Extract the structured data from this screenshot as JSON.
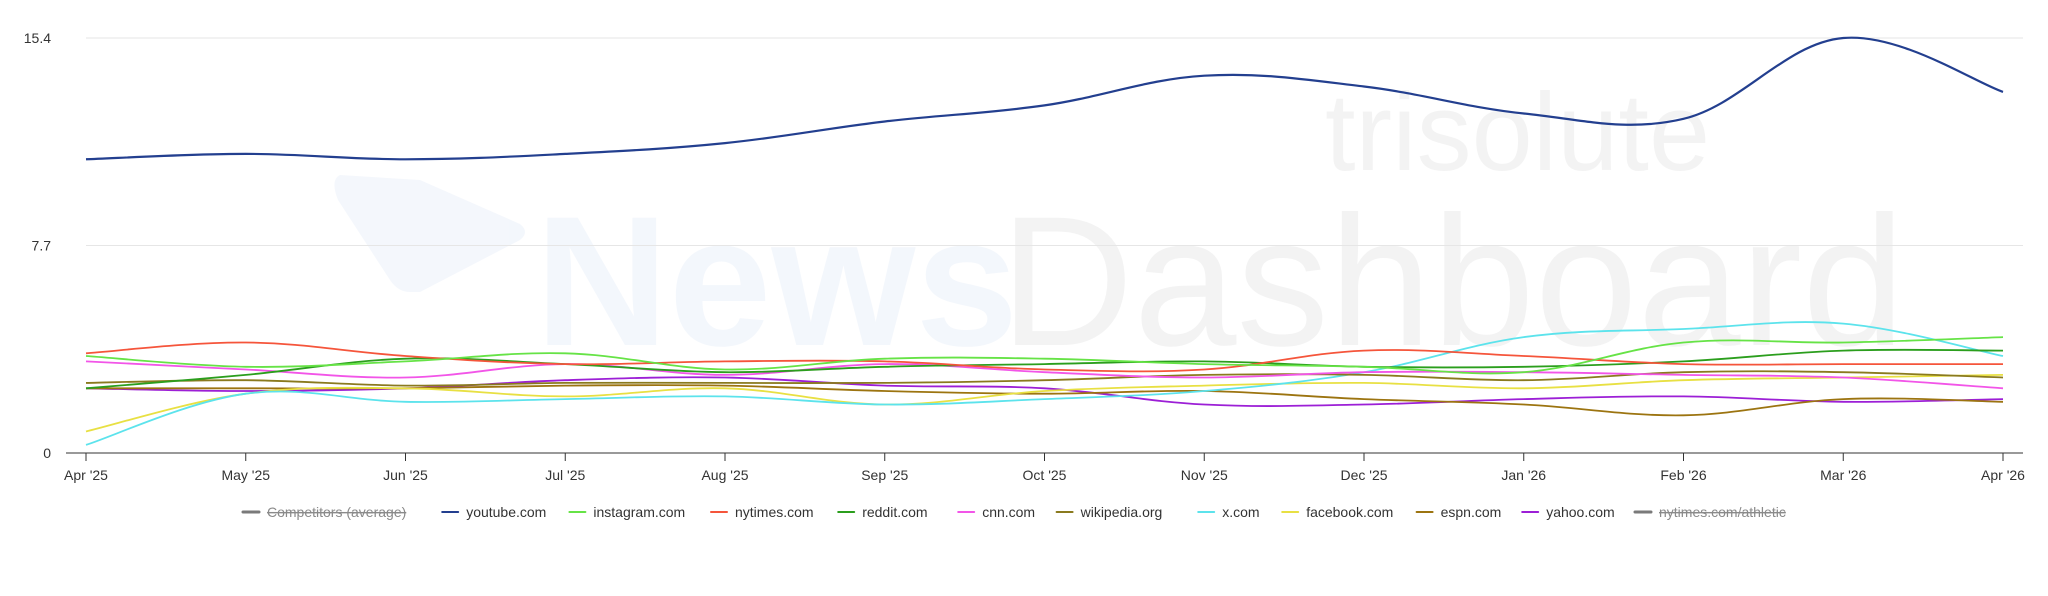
{
  "watermark": {
    "brand": "trisolute",
    "product_part1": "News",
    "product_part2": "Dashboard"
  },
  "chart_data": {
    "type": "line",
    "title": "",
    "xlabel": "",
    "ylabel": "",
    "ylim": [
      0,
      15.4
    ],
    "y_ticks": [
      0,
      7.7,
      15.4
    ],
    "y_tick_labels": [
      "0",
      "7.7",
      "15.4"
    ],
    "x_ticks": [
      "Apr '25",
      "May '25",
      "Jun '25",
      "Jul '25",
      "Aug '25",
      "Sep '25",
      "Oct '25",
      "Nov '25",
      "Dec '25",
      "Jan '26",
      "Feb '26",
      "Mar '26",
      "Apr '26"
    ],
    "grid": "horizontal",
    "legend_position": "bottom-center",
    "legend": [
      {
        "name": "Competitors (average)",
        "color": "#666666",
        "hidden": true
      },
      {
        "name": "youtube.com",
        "color": "#233f8f",
        "hidden": false
      },
      {
        "name": "instagram.com",
        "color": "#66e346",
        "hidden": false
      },
      {
        "name": "nytimes.com",
        "color": "#f5553b",
        "hidden": false
      },
      {
        "name": "reddit.com",
        "color": "#2b9e1d",
        "hidden": false
      },
      {
        "name": "cnn.com",
        "color": "#f255e8",
        "hidden": false
      },
      {
        "name": "wikipedia.org",
        "color": "#8a7a1e",
        "hidden": false
      },
      {
        "name": "x.com",
        "color": "#5ce3ec",
        "hidden": false
      },
      {
        "name": "facebook.com",
        "color": "#e8e043",
        "hidden": false
      },
      {
        "name": "espn.com",
        "color": "#9c7410",
        "hidden": false
      },
      {
        "name": "yahoo.com",
        "color": "#9c1fd6",
        "hidden": false
      },
      {
        "name": "nytimes.com/athletic",
        "color": "#5a5a5a",
        "hidden": true
      }
    ],
    "series": [
      {
        "name": "youtube.com",
        "color": "#233f8f",
        "values": [
          10.9,
          11.1,
          10.9,
          11.1,
          11.5,
          12.3,
          12.9,
          14.0,
          13.6,
          12.6,
          12.4,
          15.4,
          13.4
        ]
      },
      {
        "name": "instagram.com",
        "color": "#66e346",
        "values": [
          3.6,
          3.2,
          3.4,
          3.7,
          3.1,
          3.5,
          3.5,
          3.3,
          3.2,
          3.0,
          4.1,
          4.1,
          4.3
        ]
      },
      {
        "name": "nytimes.com",
        "color": "#f5553b",
        "values": [
          3.7,
          4.1,
          3.6,
          3.3,
          3.4,
          3.4,
          3.1,
          3.1,
          3.8,
          3.6,
          3.3,
          3.3,
          3.3
        ]
      },
      {
        "name": "reddit.com",
        "color": "#2b9e1d",
        "values": [
          2.4,
          2.9,
          3.5,
          3.3,
          3.0,
          3.2,
          3.3,
          3.4,
          3.2,
          3.2,
          3.4,
          3.8,
          3.8
        ]
      },
      {
        "name": "cnn.com",
        "color": "#f255e8",
        "values": [
          3.4,
          3.1,
          2.8,
          3.3,
          2.9,
          3.3,
          3.0,
          2.8,
          3.0,
          3.0,
          2.9,
          2.8,
          2.4
        ]
      },
      {
        "name": "wikipedia.org",
        "color": "#8a7a1e",
        "values": [
          2.6,
          2.7,
          2.5,
          2.6,
          2.6,
          2.6,
          2.7,
          2.9,
          2.9,
          2.7,
          3.0,
          3.0,
          2.8
        ]
      },
      {
        "name": "x.com",
        "color": "#5ce3ec",
        "values": [
          0.3,
          2.2,
          1.9,
          2.0,
          2.1,
          1.8,
          2.0,
          2.3,
          3.0,
          4.3,
          4.6,
          4.8,
          3.6
        ]
      },
      {
        "name": "facebook.com",
        "color": "#e8e043",
        "values": [
          0.8,
          2.2,
          2.4,
          2.1,
          2.4,
          1.8,
          2.3,
          2.5,
          2.6,
          2.4,
          2.7,
          2.8,
          2.9
        ]
      },
      {
        "name": "espn.com",
        "color": "#9c7410",
        "values": [
          2.4,
          2.4,
          2.4,
          2.5,
          2.5,
          2.3,
          2.2,
          2.3,
          2.0,
          1.8,
          1.4,
          2.0,
          1.9
        ]
      },
      {
        "name": "yahoo.com",
        "color": "#9c1fd6",
        "values": [
          2.4,
          2.3,
          2.4,
          2.7,
          2.8,
          2.5,
          2.4,
          1.8,
          1.8,
          2.0,
          2.1,
          1.9,
          2.0
        ]
      }
    ]
  }
}
